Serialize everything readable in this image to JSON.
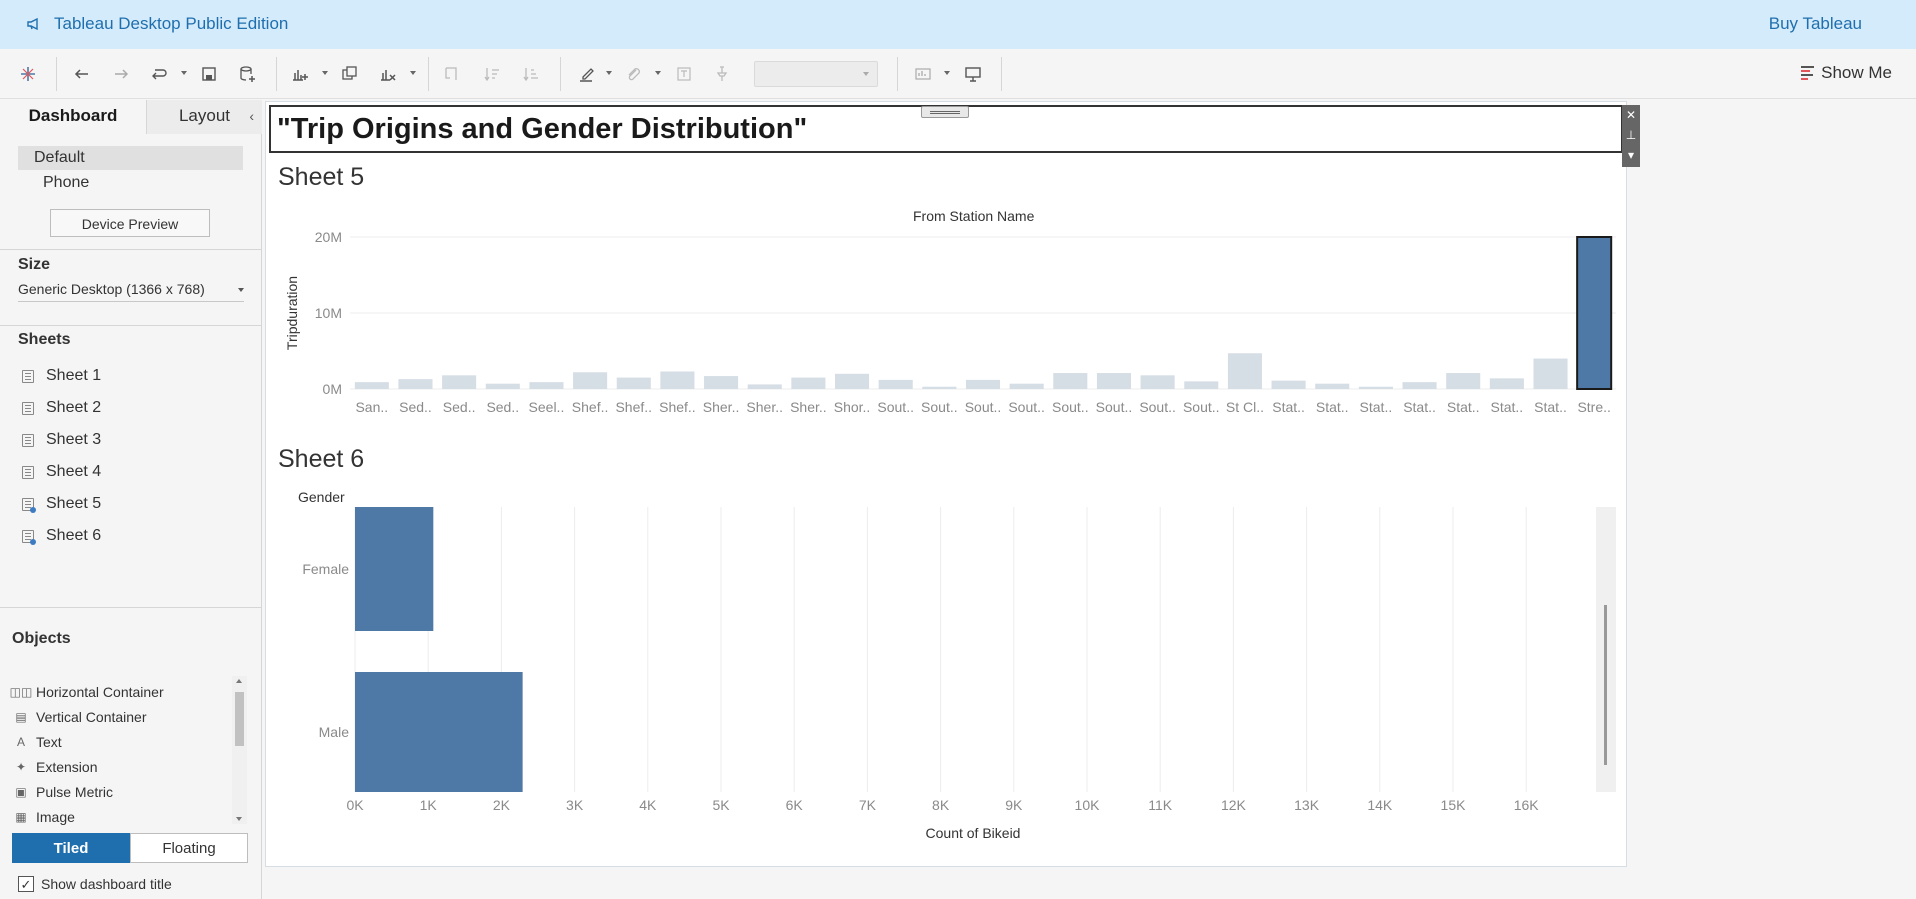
{
  "banner": {
    "app_title": "Tableau Desktop Public Edition",
    "buy_label": "Buy Tableau"
  },
  "toolbar": {
    "show_me_label": "Show Me",
    "accent": "#1f6fae"
  },
  "left_panel": {
    "tabs": [
      {
        "label": "Dashboard",
        "active": true
      },
      {
        "label": "Layout",
        "active": false
      }
    ],
    "collapse_icon": "chevron-left-icon",
    "devices": [
      {
        "label": "Default",
        "selected": true
      },
      {
        "label": "Phone",
        "selected": false
      }
    ],
    "device_preview_label": "Device Preview",
    "size": {
      "title": "Size",
      "value": "Generic Desktop (1366 x 768)"
    },
    "sheets": {
      "title": "Sheets",
      "items": [
        {
          "label": "Sheet 1",
          "in_use": false
        },
        {
          "label": "Sheet 2",
          "in_use": false
        },
        {
          "label": "Sheet 3",
          "in_use": false
        },
        {
          "label": "Sheet 4",
          "in_use": false
        },
        {
          "label": "Sheet 5",
          "in_use": true
        },
        {
          "label": "Sheet 6",
          "in_use": true
        }
      ]
    },
    "objects": {
      "title": "Objects",
      "items": [
        {
          "label": "Horizontal Container",
          "icon": "horizontal-container-icon"
        },
        {
          "label": "Vertical Container",
          "icon": "vertical-container-icon"
        },
        {
          "label": "Text",
          "icon": "text-icon"
        },
        {
          "label": "Extension",
          "icon": "extension-icon"
        },
        {
          "label": "Pulse Metric",
          "icon": "pulse-metric-icon"
        },
        {
          "label": "Image",
          "icon": "image-icon"
        }
      ]
    },
    "layout_mode": {
      "tiled": "Tiled",
      "floating": "Floating",
      "selected": "Tiled"
    },
    "show_title": {
      "label": "Show dashboard title",
      "checked": true,
      "mark": "✓"
    }
  },
  "dashboard": {
    "title": "\"Trip Origins and Gender Distribution\"",
    "object_tools": [
      "✕",
      "⊥",
      "▾"
    ]
  },
  "chart_data": [
    {
      "sheet_title": "Sheet 5",
      "type": "bar",
      "header": "From Station Name",
      "ylabel": "Tripduration",
      "ylim": [
        0,
        20000000
      ],
      "y_ticks": [
        {
          "value": 0,
          "label": "0M"
        },
        {
          "value": 10000000,
          "label": "10M"
        },
        {
          "value": 20000000,
          "label": "20M"
        }
      ],
      "categories": [
        "San..",
        "Sed..",
        "Sed..",
        "Sed..",
        "Seel..",
        "Shef..",
        "Shef..",
        "Shef..",
        "Sher..",
        "Sher..",
        "Sher..",
        "Shor..",
        "Sout..",
        "Sout..",
        "Sout..",
        "Sout..",
        "Sout..",
        "Sout..",
        "Sout..",
        "Sout..",
        "St Cl..",
        "Stat..",
        "Stat..",
        "Stat..",
        "Stat..",
        "Stat..",
        "Stat..",
        "Stat..",
        "Stre.."
      ],
      "values": [
        900000,
        1300000,
        1800000,
        700000,
        900000,
        2200000,
        1500000,
        2300000,
        1700000,
        600000,
        1500000,
        2000000,
        1200000,
        300000,
        1200000,
        700000,
        2100000,
        2100000,
        1800000,
        1000000,
        4700000,
        1100000,
        700000,
        300000,
        900000,
        2100000,
        1400000,
        4000000,
        20000000
      ],
      "highlighted_index": 28,
      "colors": {
        "bar": "#d5dde5",
        "highlight": "#4e79a7",
        "highlight_border": "#1a1a1a"
      }
    },
    {
      "sheet_title": "Sheet 6",
      "type": "bar",
      "orientation": "horizontal",
      "row_header": "Gender",
      "categories": [
        "Female",
        "Male"
      ],
      "values": [
        1070,
        2290
      ],
      "xlabel": "Count of Bikeid",
      "xlim": [
        0,
        17000
      ],
      "x_ticks": [
        {
          "value": 0,
          "label": "0K"
        },
        {
          "value": 1000,
          "label": "1K"
        },
        {
          "value": 2000,
          "label": "2K"
        },
        {
          "value": 3000,
          "label": "3K"
        },
        {
          "value": 4000,
          "label": "4K"
        },
        {
          "value": 5000,
          "label": "5K"
        },
        {
          "value": 6000,
          "label": "6K"
        },
        {
          "value": 7000,
          "label": "7K"
        },
        {
          "value": 8000,
          "label": "8K"
        },
        {
          "value": 9000,
          "label": "9K"
        },
        {
          "value": 10000,
          "label": "10K"
        },
        {
          "value": 11000,
          "label": "11K"
        },
        {
          "value": 12000,
          "label": "12K"
        },
        {
          "value": 13000,
          "label": "13K"
        },
        {
          "value": 14000,
          "label": "14K"
        },
        {
          "value": 15000,
          "label": "15K"
        },
        {
          "value": 16000,
          "label": "16K"
        }
      ],
      "colors": {
        "bar": "#4e79a7"
      }
    }
  ]
}
